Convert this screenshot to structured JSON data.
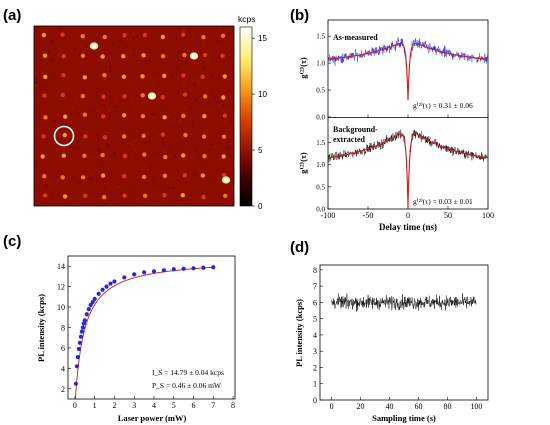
{
  "panels": {
    "a": {
      "label": "(a)"
    },
    "b": {
      "label": "(b)"
    },
    "c": {
      "label": "(c)"
    },
    "d": {
      "label": "(d)"
    }
  },
  "chart_data": [
    {
      "panel": "a",
      "type": "heatmap",
      "colorbar": {
        "unit": "kcps",
        "ticks": [
          0,
          5,
          10,
          15
        ],
        "range": [
          0,
          16
        ]
      },
      "colormap": [
        "#000000",
        "#3a0000",
        "#8a1000",
        "#d64000",
        "#f59a20",
        "#ffee70",
        "#ffffff"
      ],
      "grid": {
        "rows": 9,
        "cols": 10,
        "spot_level": 4.5
      },
      "bright_spots": [
        {
          "col": 3.0,
          "row": 1.0,
          "value": 16
        },
        {
          "col": 8.0,
          "row": 1.5,
          "value": 15
        },
        {
          "col": 5.9,
          "row": 3.5,
          "value": 12
        },
        {
          "col": 9.6,
          "row": 7.7,
          "value": 14
        }
      ],
      "highlight": {
        "shape": "circle",
        "col": 1,
        "row": 5
      }
    },
    {
      "panel": "b-top",
      "type": "line",
      "text": "As-measured",
      "ylabel": "g⁽²⁾(τ)",
      "yticks": [
        "0.0",
        "0.5",
        "1.0",
        "1.5"
      ],
      "ylim": [
        0,
        1.8
      ],
      "xlim": [
        -100,
        100
      ],
      "annotation": "g⁽²⁾(τ) = 0.31 ± 0.06",
      "raw_color": "#1f2bd6",
      "fit_color": "#d81818",
      "model": {
        "dip_min": 0.31,
        "peak": 1.45,
        "baseline": 1.0,
        "decay_ns": 55
      }
    },
    {
      "panel": "b-bottom",
      "type": "line",
      "text": "Background-extracted",
      "ylabel": "g⁽²⁾(τ)",
      "yticks": [
        "0.0",
        "0.5",
        "1.0",
        "1.5"
      ],
      "ylim": [
        0,
        2.05
      ],
      "xlabel": "Delay time (ns)",
      "xticks": [
        -100,
        -50,
        0,
        50,
        100
      ],
      "xlim": [
        -100,
        100
      ],
      "annotation": "g⁽²⁾(τ) = 0.03 ± 0.01",
      "raw_color": "#000000",
      "fit_color": "#d81818",
      "model": {
        "dip_min": 0.03,
        "peak": 1.85,
        "baseline": 1.02,
        "decay_ns": 55
      }
    },
    {
      "panel": "c",
      "type": "scatter",
      "xlabel": "Laser power (mW)",
      "ylabel": "PL intensity (kcps)",
      "xticks": [
        0,
        1,
        2,
        3,
        4,
        5,
        6,
        7,
        8
      ],
      "yticks": [
        2,
        4,
        6,
        8,
        10,
        12,
        14
      ],
      "xlim": [
        -0.35,
        8.1
      ],
      "ylim": [
        1,
        15
      ],
      "annotations": [
        "I_S = 14.79 ± 0.04 kcps",
        "P_S = 0.46 ± 0.06 mW"
      ],
      "marker_color": "#1f2bd6",
      "fit_color": "#d81818",
      "x": [
        0.05,
        0.1,
        0.15,
        0.2,
        0.25,
        0.3,
        0.35,
        0.4,
        0.45,
        0.5,
        0.6,
        0.7,
        0.8,
        0.9,
        1.0,
        1.2,
        1.4,
        1.6,
        1.8,
        2.0,
        2.5,
        3.0,
        3.5,
        4.0,
        4.5,
        5.0,
        5.5,
        6.0,
        6.5,
        7.0
      ],
      "y": [
        2.5,
        4.2,
        5.1,
        5.9,
        6.5,
        7.1,
        7.6,
        8.0,
        8.4,
        8.7,
        9.3,
        9.8,
        10.2,
        10.5,
        10.8,
        11.3,
        11.7,
        12.0,
        12.3,
        12.5,
        12.9,
        13.2,
        13.4,
        13.5,
        13.6,
        13.7,
        13.75,
        13.8,
        13.85,
        13.9
      ]
    },
    {
      "panel": "d",
      "type": "line",
      "xlabel": "Sampling time (s)",
      "ylabel": "PL intensity (kcps)",
      "xticks": [
        0,
        20,
        40,
        60,
        80,
        100
      ],
      "yticks": [
        0,
        1,
        2,
        3,
        4,
        5,
        6,
        7,
        8
      ],
      "xlim": [
        -8,
        108
      ],
      "ylim": [
        0,
        8.3
      ],
      "mean": 6.0,
      "noise_amplitude": 0.55,
      "x_range": [
        0,
        100
      ]
    }
  ]
}
